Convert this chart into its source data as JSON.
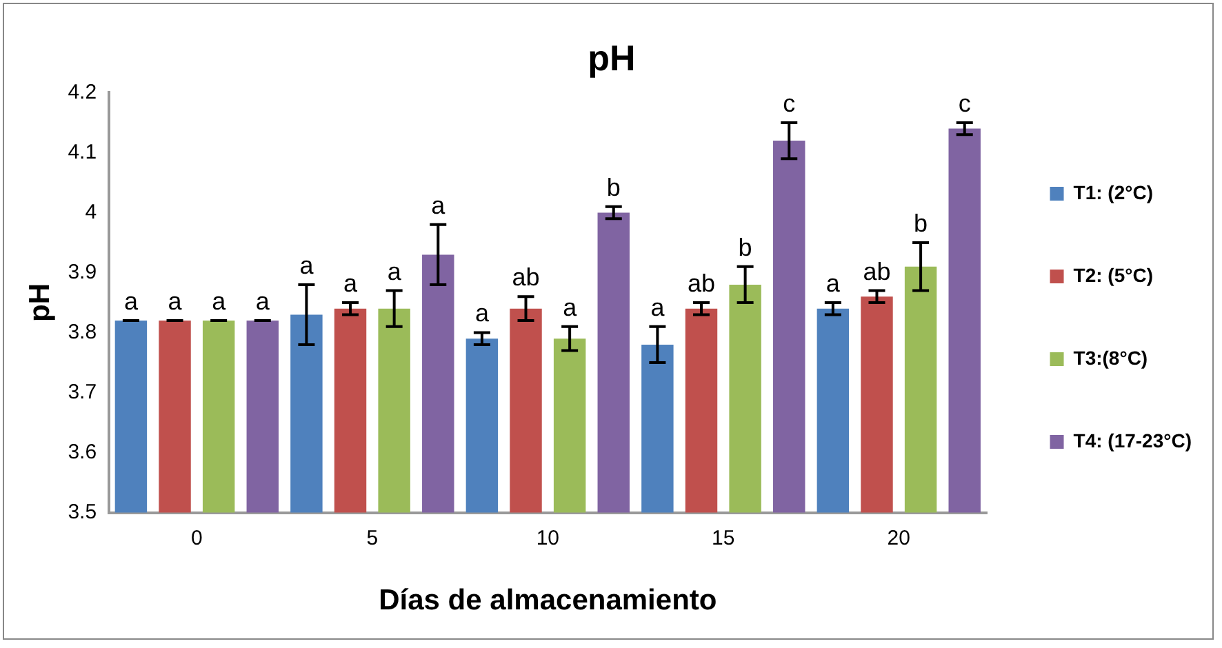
{
  "chart_data": {
    "type": "bar",
    "title": "pH",
    "xlabel": "Días de almacenamiento",
    "ylabel": "pH",
    "categories": [
      "0",
      "5",
      "10",
      "15",
      "20"
    ],
    "ylim": [
      3.5,
      4.2
    ],
    "yticks": [
      3.5,
      3.6,
      3.7,
      3.8,
      3.9,
      {
        "value": 4.0,
        "label": "4"
      },
      4.1,
      4.2
    ],
    "grid": false,
    "legend": "right",
    "series": [
      {
        "name": "T1: (2°C)",
        "color": "#4f81bd",
        "values": [
          3.82,
          3.83,
          3.79,
          3.78,
          3.84
        ],
        "errors": [
          0,
          0.05,
          0.01,
          0.03,
          0.01
        ],
        "value_labels": [
          "a",
          "a",
          "a",
          "a",
          "a"
        ]
      },
      {
        "name": "T2: (5°C)",
        "color": "#c0504d",
        "values": [
          3.82,
          3.84,
          3.84,
          3.84,
          3.86
        ],
        "errors": [
          0,
          0.01,
          0.02,
          0.01,
          0.01
        ],
        "value_labels": [
          "a",
          "a",
          "ab",
          "ab",
          "ab"
        ]
      },
      {
        "name": "T3:(8°C)",
        "color": "#9bbb59",
        "values": [
          3.82,
          3.84,
          3.79,
          3.88,
          3.91
        ],
        "errors": [
          0,
          0.03,
          0.02,
          0.03,
          0.04
        ],
        "value_labels": [
          "a",
          "a",
          "a",
          "b",
          "b"
        ]
      },
      {
        "name": "T4: (17-23°C)",
        "color": "#8064a2",
        "values": [
          3.82,
          3.93,
          4.0,
          4.12,
          4.14
        ],
        "errors": [
          0,
          0.05,
          0.01,
          0.03,
          0.01
        ],
        "value_labels": [
          "a",
          "a",
          "b",
          "c",
          "c"
        ]
      }
    ]
  }
}
